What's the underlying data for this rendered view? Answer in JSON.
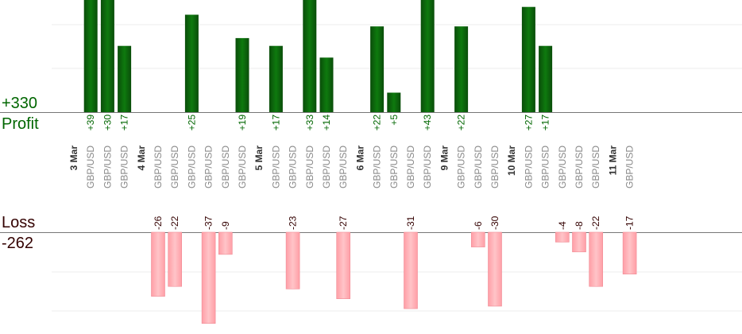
{
  "chart_data": {
    "type": "bar",
    "profit": {
      "label": "Profit",
      "total_label": "+330",
      "color": "#006600",
      "label_color": "#006600"
    },
    "loss": {
      "label": "Loss",
      "total_label": "-262",
      "color": "#ffb3b8",
      "label_color": "#330000"
    },
    "pair_color": "#888888",
    "date_color": "#333333",
    "axis_color": "#777777",
    "grid_color": "#eeeeee",
    "columns": [
      {
        "kind": "date",
        "label": "3 Mar"
      },
      {
        "kind": "trade",
        "pair": "GBP/USD",
        "value": 39,
        "value_label": "+39"
      },
      {
        "kind": "trade",
        "pair": "GBP/USD",
        "value": 30,
        "value_label": "+30"
      },
      {
        "kind": "trade",
        "pair": "GBP/USD",
        "value": 17,
        "value_label": "+17"
      },
      {
        "kind": "date",
        "label": "4 Mar"
      },
      {
        "kind": "trade",
        "pair": "GBP/USD",
        "value": -26,
        "value_label": "-26"
      },
      {
        "kind": "trade",
        "pair": "GBP/USD",
        "value": -22,
        "value_label": "-22"
      },
      {
        "kind": "trade",
        "pair": "GBP/USD",
        "value": 25,
        "value_label": "+25"
      },
      {
        "kind": "trade",
        "pair": "GBP/USD",
        "value": -37,
        "value_label": "-37"
      },
      {
        "kind": "trade",
        "pair": "GBP/USD",
        "value": -9,
        "value_label": "-9"
      },
      {
        "kind": "trade",
        "pair": "GBP/USD",
        "value": 19,
        "value_label": "+19"
      },
      {
        "kind": "date",
        "label": "5 Mar"
      },
      {
        "kind": "trade",
        "pair": "GBP/USD",
        "value": 17,
        "value_label": "+17"
      },
      {
        "kind": "trade",
        "pair": "GBP/USD",
        "value": -23,
        "value_label": "-23"
      },
      {
        "kind": "trade",
        "pair": "GBP/USD",
        "value": 33,
        "value_label": "+33"
      },
      {
        "kind": "trade",
        "pair": "GBP/USD",
        "value": 14,
        "value_label": "+14"
      },
      {
        "kind": "trade",
        "pair": "GBP/USD",
        "value": -27,
        "value_label": "-27"
      },
      {
        "kind": "date",
        "label": "6 Mar"
      },
      {
        "kind": "trade",
        "pair": "GBP/USD",
        "value": 22,
        "value_label": "+22"
      },
      {
        "kind": "trade",
        "pair": "GBP/USD",
        "value": 5,
        "value_label": "+5"
      },
      {
        "kind": "trade",
        "pair": "GBP/USD",
        "value": -31,
        "value_label": "-31"
      },
      {
        "kind": "trade",
        "pair": "GBP/USD",
        "value": 43,
        "value_label": "+43"
      },
      {
        "kind": "date",
        "label": "9 Mar"
      },
      {
        "kind": "trade",
        "pair": "GBP/USD",
        "value": 22,
        "value_label": "+22"
      },
      {
        "kind": "trade",
        "pair": "GBP/USD",
        "value": -6,
        "value_label": "-6"
      },
      {
        "kind": "trade",
        "pair": "GBP/USD",
        "value": -30,
        "value_label": "-30"
      },
      {
        "kind": "date",
        "label": "10 Mar"
      },
      {
        "kind": "trade",
        "pair": "GBP/USD",
        "value": 27,
        "value_label": "+27"
      },
      {
        "kind": "trade",
        "pair": "GBP/USD",
        "value": 17,
        "value_label": "+17"
      },
      {
        "kind": "trade",
        "pair": "GBP/USD",
        "value": -4,
        "value_label": "-4"
      },
      {
        "kind": "trade",
        "pair": "GBP/USD",
        "value": -8,
        "value_label": "-8"
      },
      {
        "kind": "trade",
        "pair": "GBP/USD",
        "value": -22,
        "value_label": "-22"
      },
      {
        "kind": "date",
        "label": "11 Mar"
      },
      {
        "kind": "trade",
        "pair": "GBP/USD",
        "value": -17,
        "value_label": "-17"
      }
    ]
  }
}
